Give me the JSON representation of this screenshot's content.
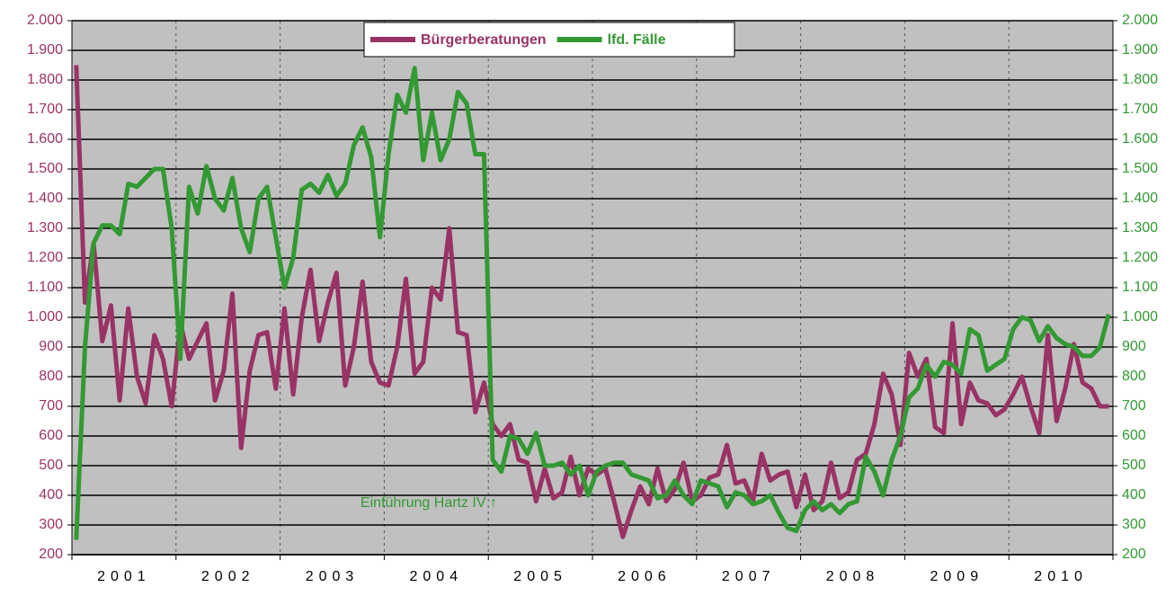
{
  "chart_data": {
    "type": "line",
    "categories": [
      null,
      null,
      null,
      null,
      null,
      null,
      "2001",
      null,
      null,
      null,
      null,
      null,
      null,
      null,
      null,
      null,
      null,
      null,
      "2002",
      null,
      null,
      null,
      null,
      null,
      null,
      null,
      null,
      null,
      null,
      null,
      "2003",
      null,
      null,
      null,
      null,
      null,
      null,
      null,
      null,
      null,
      null,
      null,
      "2004",
      null,
      null,
      null,
      null,
      null,
      null,
      null,
      null,
      null,
      null,
      null,
      "2005",
      null,
      null,
      null,
      null,
      null,
      null,
      null,
      null,
      null,
      null,
      null,
      "2006",
      null,
      null,
      null,
      null,
      null,
      null,
      null,
      null,
      null,
      null,
      null,
      "2007",
      null,
      null,
      null,
      null,
      null,
      null,
      null,
      null,
      null,
      null,
      null,
      "2008",
      null,
      null,
      null,
      null,
      null,
      null,
      null,
      null,
      null,
      null,
      null,
      "2009",
      null,
      null,
      null,
      null,
      null,
      null,
      null,
      null,
      null,
      null,
      null,
      "2010",
      null,
      null,
      null,
      null,
      null
    ],
    "series": [
      {
        "name": "Bürgerberatungen",
        "color": "#993366",
        "values": [
          1850,
          1050,
          1250,
          920,
          1040,
          720,
          1030,
          800,
          710,
          940,
          860,
          700,
          980,
          860,
          920,
          980,
          720,
          820,
          1080,
          560,
          820,
          940,
          950,
          760,
          1030,
          740,
          1000,
          1160,
          920,
          1050,
          1150,
          770,
          900,
          1120,
          850,
          780,
          770,
          900,
          1130,
          810,
          850,
          1100,
          1060,
          1300,
          950,
          940,
          680,
          780,
          640,
          600,
          640,
          520,
          510,
          380,
          490,
          390,
          410,
          530,
          400,
          490,
          470,
          490,
          380,
          260,
          350,
          430,
          370,
          490,
          380,
          420,
          510,
          380,
          400,
          460,
          470,
          570,
          440,
          450,
          380,
          540,
          450,
          470,
          480,
          360,
          470,
          350,
          380,
          510,
          390,
          410,
          520,
          540,
          640,
          810,
          740,
          570,
          880,
          800,
          860,
          630,
          610,
          980,
          640,
          780,
          720,
          710,
          670,
          690,
          740,
          800,
          700,
          610,
          940,
          650,
          760,
          910,
          780,
          760,
          700,
          700
        ]
      },
      {
        "name": "lfd. Fälle",
        "color": "#339933",
        "axis": "y2",
        "values": [
          250,
          900,
          1250,
          1310,
          1310,
          1280,
          1450,
          1440,
          1470,
          1500,
          1500,
          1300,
          860,
          1440,
          1350,
          1510,
          1400,
          1360,
          1470,
          1300,
          1220,
          1400,
          1440,
          1270,
          1100,
          1200,
          1430,
          1450,
          1420,
          1480,
          1410,
          1450,
          1580,
          1640,
          1540,
          1270,
          1550,
          1750,
          1690,
          1840,
          1530,
          1690,
          1530,
          1600,
          1760,
          1720,
          1550,
          1550,
          520,
          480,
          600,
          590,
          540,
          610,
          500,
          500,
          510,
          470,
          500,
          400,
          480,
          500,
          510,
          510,
          470,
          460,
          450,
          390,
          400,
          450,
          400,
          370,
          450,
          440,
          430,
          360,
          410,
          400,
          370,
          380,
          400,
          340,
          290,
          280,
          350,
          380,
          350,
          370,
          340,
          370,
          380,
          530,
          480,
          400,
          520,
          600,
          730,
          760,
          840,
          800,
          850,
          840,
          810,
          960,
          940,
          820,
          840,
          860,
          960,
          1000,
          990,
          920,
          970,
          930,
          910,
          900,
          870,
          870,
          900,
          1010
        ]
      }
    ],
    "ylim": [
      200,
      2000
    ],
    "yticks": [
      {
        "value": 200,
        "label": "200"
      },
      {
        "value": 300,
        "label": "300"
      },
      {
        "value": 400,
        "label": "400"
      },
      {
        "value": 500,
        "label": "500"
      },
      {
        "value": 600,
        "label": "600"
      },
      {
        "value": 700,
        "label": "700"
      },
      {
        "value": 800,
        "label": "800"
      },
      {
        "value": 900,
        "label": "900"
      },
      {
        "value": 1000,
        "label": "1.000"
      },
      {
        "value": 1100,
        "label": "1.100"
      },
      {
        "value": 1200,
        "label": "1.200"
      },
      {
        "value": 1300,
        "label": "1.300"
      },
      {
        "value": 1400,
        "label": "1.400"
      },
      {
        "value": 1500,
        "label": "1.500"
      },
      {
        "value": 1600,
        "label": "1.600"
      },
      {
        "value": 1700,
        "label": "1.700"
      },
      {
        "value": 1800,
        "label": "1.800"
      },
      {
        "value": 1900,
        "label": "1.900"
      },
      {
        "value": 2000,
        "label": "2.000"
      }
    ],
    "y2lim": [
      200,
      2000
    ],
    "y2ticks": [
      {
        "value": 200,
        "label": "200"
      },
      {
        "value": 300,
        "label": "300"
      },
      {
        "value": 400,
        "label": "400"
      },
      {
        "value": 500,
        "label": "500"
      },
      {
        "value": 600,
        "label": "600"
      },
      {
        "value": 700,
        "label": "700"
      },
      {
        "value": 800,
        "label": "800"
      },
      {
        "value": 900,
        "label": "900"
      },
      {
        "value": 1000,
        "label": "1.000"
      },
      {
        "value": 1100,
        "label": "1.100"
      },
      {
        "value": 1200,
        "label": "1.200"
      },
      {
        "value": 1300,
        "label": "1.300"
      },
      {
        "value": 1400,
        "label": "1.400"
      },
      {
        "value": 1500,
        "label": "1.500"
      },
      {
        "value": 1600,
        "label": "1.600"
      },
      {
        "value": 1700,
        "label": "1.700"
      },
      {
        "value": 1800,
        "label": "1.800"
      },
      {
        "value": 1900,
        "label": "1.900"
      },
      {
        "value": 2000,
        "label": "2.000"
      }
    ],
    "annotation": "Einführung Hartz IV ↑",
    "grid": true,
    "legend": "top"
  }
}
